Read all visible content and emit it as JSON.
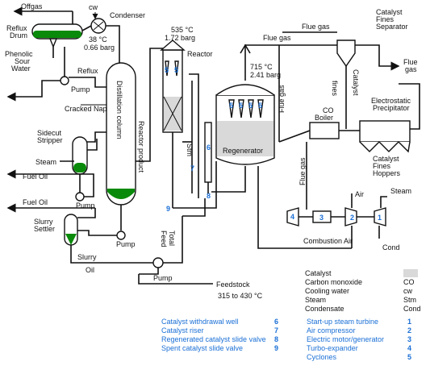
{
  "labels": {
    "offgas": "Offgas",
    "cw": "cw",
    "condenser": "Condenser",
    "reflux_drum": "Reflux\nDrum",
    "temp_38": "38 °C",
    "press_066": "0.66 barg",
    "phenolic": "Phenolic\nSour\nWater",
    "reflux": "Reflux",
    "pump_reflux": "Pump",
    "cracked_naphtha": "Cracked Naphtha",
    "sidecut_stripper": "Sidecut\nStripper",
    "steam": "Steam",
    "fuel_oil_1": "Fuel Oil",
    "fuel_oil_2": "Fuel Oil",
    "pump_sidecut": "Pump",
    "slurry_settler": "Slurry\nSettler",
    "distillation_column": "Distillation column",
    "pump_bottom": "Pump",
    "slurry": "Slurry",
    "oil": "Oil",
    "pump_feed": "Pump",
    "feedstock": "Feedstock",
    "feed_temp": "315 to 430 °C",
    "reactor_product": "Reactor product",
    "reactor": "Reactor",
    "temp_535": "535 °C",
    "press_172": "1.72 barg",
    "stm": "Stm",
    "total_feed": "Total\nFeed",
    "regenerator": "Regenerator",
    "temp_715": "715 °C",
    "press_241": "2.41 barg",
    "flue_gas_top": "Flue gas",
    "flue_gas_left": "Flue gas",
    "flue_gas_right": "Flue\ngas",
    "catalyst_fines_separator": "Catalyst\nFines\nSeparator",
    "fines": "fines",
    "catalyst": "Catalyst",
    "co_boiler": "CO\nBoiler",
    "flue_gas_vert": "Flue gas",
    "flue_gas_vert2": "Flue gas",
    "esp": "Electrostatic\nPrecipitator",
    "catalyst_fines_hoppers": "Catalyst\nFines\nHoppers",
    "air": "Air",
    "steam_right": "Steam",
    "cond": "Cond",
    "combustion_air": "Combustion Air"
  },
  "legend": {
    "entries": [
      {
        "abbr": "",
        "text": "Catalyst"
      },
      {
        "abbr": "CO",
        "text": "Carbon monoxide"
      },
      {
        "abbr": "cw",
        "text": "Cooling water"
      },
      {
        "abbr": "Stm",
        "text": "Steam"
      },
      {
        "abbr": "Cond",
        "text": "Condensate"
      }
    ],
    "numbered_left": [
      {
        "n": "1",
        "text": "Start-up steam turbine"
      },
      {
        "n": "2",
        "text": "Air compressor"
      },
      {
        "n": "3",
        "text": "Electric motor/generator"
      },
      {
        "n": "4",
        "text": "Turbo-expander"
      },
      {
        "n": "5",
        "text": "Cyclones"
      }
    ],
    "numbered_right": [
      {
        "n": "6",
        "text": "Catalyst withdrawal well"
      },
      {
        "n": "7",
        "text": "Catalyst riser"
      },
      {
        "n": "8",
        "text": "Regenerated catalyst slide valve"
      },
      {
        "n": "9",
        "text": "Spent catalyst slide valve"
      }
    ]
  },
  "colors": {
    "stroke": "#111111",
    "liquid": "#0a8a0a",
    "catalyst": "#d9d9d9",
    "numbers": "#1a6fd6"
  }
}
